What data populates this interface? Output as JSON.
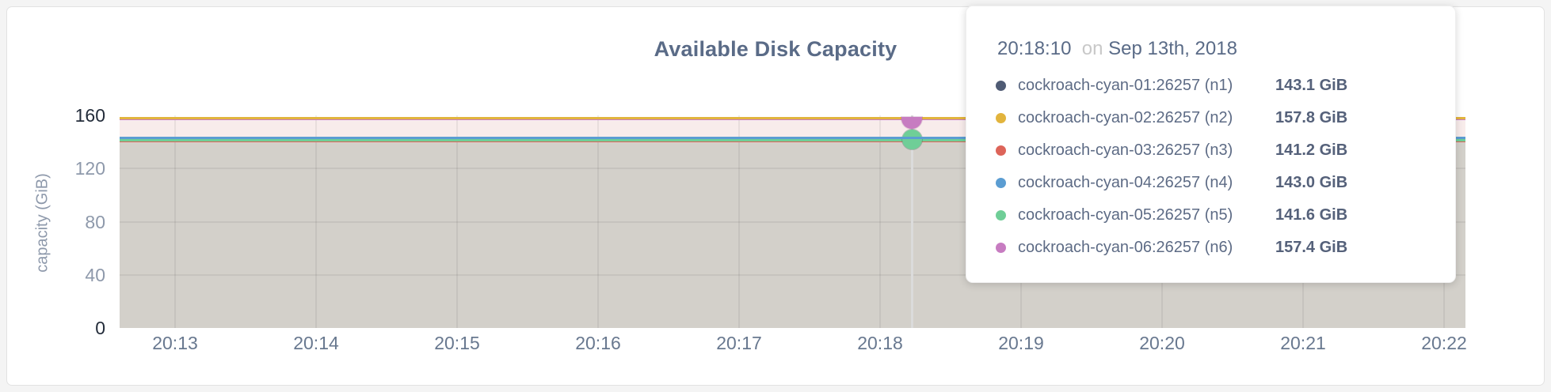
{
  "chart": {
    "title": "Available Disk Capacity",
    "ylabel": "capacity (GiB)"
  },
  "chart_data": {
    "type": "area",
    "title": "Available Disk Capacity",
    "xlabel": "",
    "ylabel": "capacity (GiB)",
    "ylim": [
      0,
      160
    ],
    "y_ticks": [
      160,
      120,
      80,
      40,
      0
    ],
    "x_ticks": [
      "20:13",
      "20:14",
      "20:15",
      "20:16",
      "20:17",
      "20:18",
      "20:19",
      "20:20",
      "20:21",
      "20:22"
    ],
    "grid": true,
    "legend_position": "hover-tooltip",
    "note": "All six series are flat (constant) lines across the visible time window",
    "hover_time": "20:18:10",
    "series": [
      {
        "name": "cockroach-cyan-01:26257 (n1)",
        "color": "#4f5b74",
        "value": 143.1
      },
      {
        "name": "cockroach-cyan-02:26257 (n2)",
        "color": "#e2b43d",
        "value": 157.8
      },
      {
        "name": "cockroach-cyan-03:26257 (n3)",
        "color": "#dd6459",
        "value": 141.2
      },
      {
        "name": "cockroach-cyan-04:26257 (n4)",
        "color": "#5b9dd2",
        "value": 143.0
      },
      {
        "name": "cockroach-cyan-05:26257 (n5)",
        "color": "#6fce97",
        "value": 141.6
      },
      {
        "name": "cockroach-cyan-06:26257 (n6)",
        "color": "#c77cc1",
        "value": 157.4
      }
    ]
  },
  "tooltip": {
    "time": "20:18:10",
    "conjunction": "on",
    "date": "Sep 13th, 2018",
    "rows": [
      {
        "label": "cockroach-cyan-01:26257 (n1)",
        "value": "143.1 GiB",
        "color": "#4f5b74"
      },
      {
        "label": "cockroach-cyan-02:26257 (n2)",
        "value": "157.8 GiB",
        "color": "#e2b43d"
      },
      {
        "label": "cockroach-cyan-03:26257 (n3)",
        "value": "141.2 GiB",
        "color": "#dd6459"
      },
      {
        "label": "cockroach-cyan-04:26257 (n4)",
        "value": "143.0 GiB",
        "color": "#5b9dd2"
      },
      {
        "label": "cockroach-cyan-05:26257 (n5)",
        "value": "141.6 GiB",
        "color": "#6fce97"
      },
      {
        "label": "cockroach-cyan-06:26257 (n6)",
        "value": "157.4 GiB",
        "color": "#c77cc1"
      }
    ]
  },
  "colors": {
    "fill_upper_band": "#f8eceb",
    "fill_lower_band": "#d3d0ca",
    "axis_text": "#8e99ab",
    "axis_text_emphasis": "#232c3a",
    "title_text": "#5a6b87",
    "hover_line": "#dbdbdb"
  }
}
